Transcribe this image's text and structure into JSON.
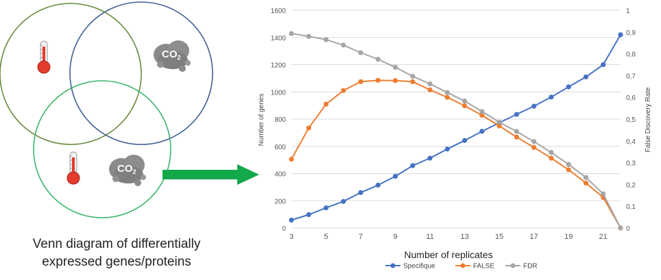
{
  "venn": {
    "caption_line1": "Venn diagram of differentially",
    "caption_line2": "expressed genes/proteins",
    "co2_label": "CO",
    "co2_subscript": "2",
    "circle_colors": [
      "#6a8a3c",
      "#3f5f96",
      "#39b56a"
    ],
    "arrow_color": "#13a84a",
    "icons": [
      "thermometer-icon",
      "co2-cloud-icon",
      "thermometer-icon",
      "co2-cloud-icon"
    ]
  },
  "chart_data": {
    "type": "line",
    "title": "",
    "xlabel": "Number of replicates",
    "ylabel": "Number of genes",
    "y2label": "False Discovery Rate",
    "x": [
      3,
      4,
      5,
      6,
      7,
      8,
      9,
      10,
      11,
      12,
      13,
      14,
      15,
      16,
      17,
      18,
      19,
      20,
      21,
      22
    ],
    "xticks": [
      3,
      5,
      7,
      9,
      11,
      13,
      15,
      17,
      19,
      21
    ],
    "ylim": [
      0,
      1600
    ],
    "yticks": [
      0,
      200,
      400,
      600,
      800,
      1000,
      1200,
      1400,
      1600
    ],
    "y2lim": [
      0,
      1
    ],
    "y2ticks": [
      "0",
      "0,1",
      "0,2",
      "0,3",
      "0,4",
      "0,5",
      "0,6",
      "0,7",
      "0,8",
      "0,9",
      "1"
    ],
    "grid": true,
    "legend_position": "bottom",
    "series": [
      {
        "name": "Specifique",
        "axis": "left",
        "color": "#4472c4",
        "values": [
          58,
          98,
          148,
          195,
          260,
          315,
          380,
          458,
          513,
          580,
          643,
          710,
          773,
          835,
          895,
          962,
          1037,
          1110,
          1200,
          1420
        ]
      },
      {
        "name": "FALSE",
        "axis": "left",
        "color": "#ed7d31",
        "values": [
          505,
          735,
          910,
          1010,
          1075,
          1085,
          1083,
          1075,
          1015,
          960,
          898,
          828,
          750,
          668,
          592,
          513,
          428,
          330,
          225,
          0
        ]
      },
      {
        "name": "FDR",
        "axis": "right",
        "color": "#a5a5a5",
        "values": [
          0.893,
          0.88,
          0.865,
          0.84,
          0.805,
          0.775,
          0.738,
          0.697,
          0.662,
          0.622,
          0.583,
          0.535,
          0.486,
          0.443,
          0.397,
          0.347,
          0.292,
          0.232,
          0.157,
          0
        ]
      }
    ]
  }
}
